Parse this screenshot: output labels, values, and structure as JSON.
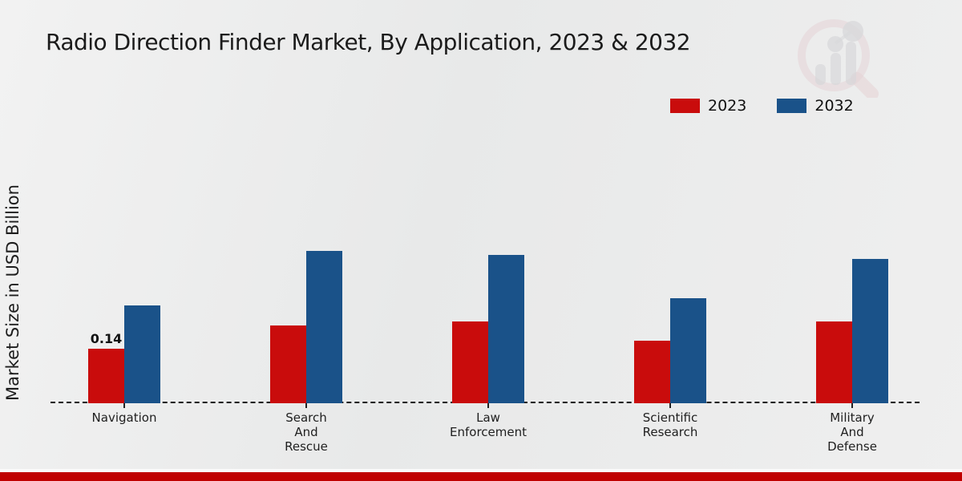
{
  "title": "Radio Direction Finder Market, By Application, 2023 & 2032",
  "ylabel": "Market Size in USD Billion",
  "legend": [
    {
      "label": "2023",
      "color": "#c90c0c"
    },
    {
      "label": "2032",
      "color": "#1a5289"
    }
  ],
  "colors": {
    "series_2023": "#c90c0c",
    "series_2032": "#1a5289",
    "footer_accent": "#c00000",
    "baseline": "#111111"
  },
  "chart_data": {
    "type": "bar",
    "title": "Radio Direction Finder Market, By Application, 2023 & 2032",
    "xlabel": "",
    "ylabel": "Market Size in USD Billion",
    "categories": [
      "Navigation",
      "Search And Rescue",
      "Law Enforcement",
      "Scientific Research",
      "Military And Defense"
    ],
    "category_label_lines": [
      [
        "Navigation"
      ],
      [
        "Search",
        "And",
        "Rescue"
      ],
      [
        "Law",
        "Enforcement"
      ],
      [
        "Scientific",
        "Research"
      ],
      [
        "Military",
        "And",
        "Defense"
      ]
    ],
    "series": [
      {
        "name": "2023",
        "color": "#c90c0c",
        "values": [
          0.14,
          0.2,
          0.21,
          0.16,
          0.21
        ]
      },
      {
        "name": "2032",
        "color": "#1a5289",
        "values": [
          0.25,
          0.39,
          0.38,
          0.27,
          0.37
        ]
      }
    ],
    "bar_labels": [
      {
        "series": "2023",
        "category_index": 0,
        "text": "0.14"
      }
    ],
    "ylim": [
      0,
      0.45
    ],
    "grid": false,
    "legend_position": "top-right",
    "baseline_style": "dashed",
    "units": "USD Billion"
  }
}
